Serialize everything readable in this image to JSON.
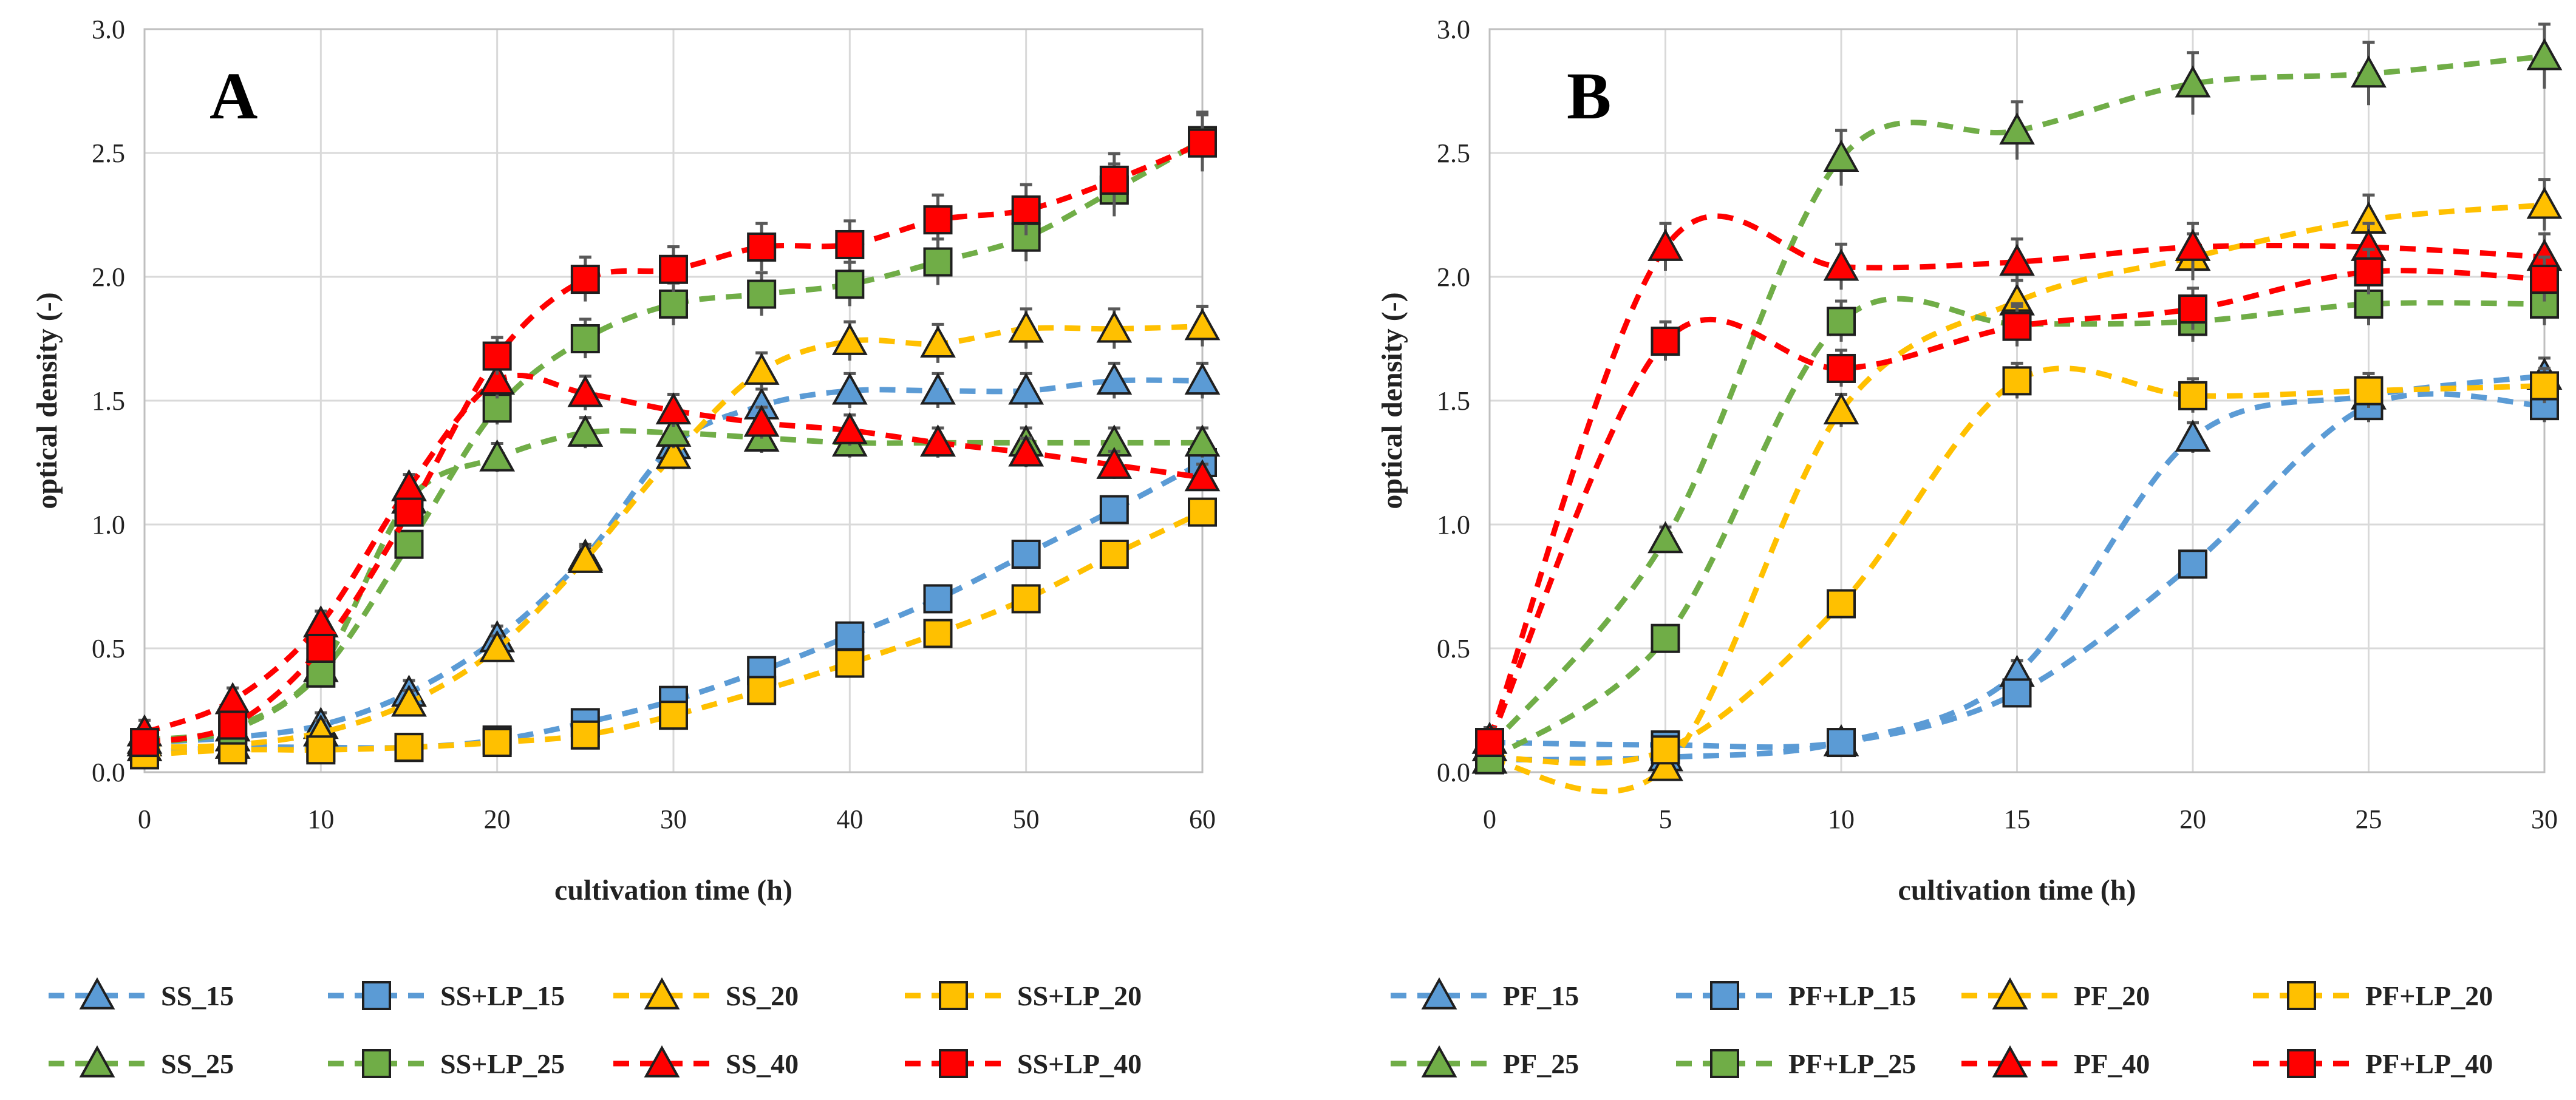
{
  "chart_data": [
    {
      "panel": "A",
      "type": "line",
      "xlabel": "cultivation time (h)",
      "ylabel": "optical density (-)",
      "xlim": [
        0,
        60
      ],
      "ylim": [
        0,
        3.0
      ],
      "xticks": [
        0,
        10,
        20,
        30,
        40,
        50,
        60
      ],
      "yticks": [
        "0.0",
        "0.5",
        "1.0",
        "1.5",
        "2.0",
        "2.5",
        "3.0"
      ],
      "grid": true,
      "legend_position": "bottom",
      "series": [
        {
          "name": "SS_15",
          "color": "#5b9bd5",
          "marker": "triangle",
          "x": [
            0,
            5,
            10,
            15,
            20,
            25,
            30,
            35,
            40,
            45,
            50,
            55,
            60
          ],
          "y": [
            0.12,
            0.14,
            0.19,
            0.32,
            0.54,
            0.87,
            1.32,
            1.48,
            1.54,
            1.54,
            1.54,
            1.58,
            1.58
          ]
        },
        {
          "name": "SS+LP_15",
          "color": "#5b9bd5",
          "marker": "square",
          "x": [
            0,
            5,
            10,
            15,
            20,
            25,
            30,
            35,
            40,
            45,
            50,
            55,
            60
          ],
          "y": [
            0.08,
            0.1,
            0.1,
            0.1,
            0.13,
            0.2,
            0.29,
            0.41,
            0.55,
            0.7,
            0.88,
            1.06,
            1.25
          ]
        },
        {
          "name": "SS_20",
          "color": "#ffc000",
          "marker": "triangle",
          "x": [
            0,
            5,
            10,
            15,
            20,
            25,
            30,
            35,
            40,
            45,
            50,
            55,
            60
          ],
          "y": [
            0.1,
            0.11,
            0.16,
            0.28,
            0.5,
            0.86,
            1.28,
            1.62,
            1.74,
            1.73,
            1.79,
            1.79,
            1.8
          ]
        },
        {
          "name": "SS+LP_20",
          "color": "#ffc000",
          "marker": "square",
          "x": [
            0,
            5,
            10,
            15,
            20,
            25,
            30,
            35,
            40,
            45,
            50,
            55,
            60
          ],
          "y": [
            0.07,
            0.09,
            0.09,
            0.1,
            0.12,
            0.15,
            0.23,
            0.33,
            0.44,
            0.56,
            0.7,
            0.88,
            1.05
          ]
        },
        {
          "name": "SS_25",
          "color": "#70ad47",
          "marker": "triangle",
          "x": [
            0,
            5,
            10,
            15,
            20,
            25,
            30,
            35,
            40,
            45,
            50,
            55,
            60
          ],
          "y": [
            0.13,
            0.18,
            0.42,
            1.1,
            1.27,
            1.37,
            1.37,
            1.35,
            1.33,
            1.33,
            1.33,
            1.33,
            1.33
          ]
        },
        {
          "name": "SS+LP_25",
          "color": "#70ad47",
          "marker": "square",
          "x": [
            0,
            5,
            10,
            15,
            20,
            25,
            30,
            35,
            40,
            45,
            50,
            55,
            60
          ],
          "y": [
            0.12,
            0.17,
            0.4,
            0.92,
            1.47,
            1.75,
            1.89,
            1.93,
            1.97,
            2.06,
            2.16,
            2.35,
            2.55
          ]
        },
        {
          "name": "SS_40",
          "color": "#ff0000",
          "marker": "triangle",
          "x": [
            0,
            5,
            10,
            15,
            20,
            25,
            30,
            35,
            40,
            45,
            50,
            55,
            60
          ],
          "y": [
            0.16,
            0.29,
            0.6,
            1.15,
            1.58,
            1.53,
            1.46,
            1.41,
            1.38,
            1.33,
            1.29,
            1.24,
            1.19
          ]
        },
        {
          "name": "SS+LP_40",
          "color": "#ff0000",
          "marker": "square",
          "x": [
            0,
            5,
            10,
            15,
            20,
            25,
            30,
            35,
            40,
            45,
            50,
            55,
            60
          ],
          "y": [
            0.12,
            0.19,
            0.5,
            1.05,
            1.68,
            1.99,
            2.03,
            2.12,
            2.13,
            2.23,
            2.27,
            2.39,
            2.54
          ]
        }
      ]
    },
    {
      "panel": "B",
      "type": "line",
      "xlabel": "cultivation time (h)",
      "ylabel": "optical density (-)",
      "xlim": [
        0,
        30
      ],
      "ylim": [
        0,
        3.0
      ],
      "xticks": [
        0,
        5,
        10,
        15,
        20,
        25,
        30
      ],
      "yticks": [
        "0.0",
        "0.5",
        "1.0",
        "1.5",
        "2.0",
        "2.5",
        "3.0"
      ],
      "grid": true,
      "legend_position": "bottom",
      "series": [
        {
          "name": "PF_15",
          "color": "#5b9bd5",
          "marker": "triangle",
          "x": [
            0,
            5,
            10,
            15,
            20,
            25,
            30
          ],
          "y": [
            0.05,
            0.06,
            0.12,
            0.4,
            1.35,
            1.52,
            1.6
          ]
        },
        {
          "name": "PF+LP_15",
          "color": "#5b9bd5",
          "marker": "square",
          "x": [
            0,
            5,
            10,
            15,
            20,
            25,
            30
          ],
          "y": [
            0.12,
            0.11,
            0.12,
            0.32,
            0.84,
            1.48,
            1.48
          ]
        },
        {
          "name": "PF_20",
          "color": "#ffc000",
          "marker": "triangle",
          "x": [
            0,
            5,
            10,
            15,
            20,
            25,
            30
          ],
          "y": [
            0.05,
            0.02,
            1.46,
            1.9,
            2.08,
            2.23,
            2.29
          ]
        },
        {
          "name": "PF+LP_20",
          "color": "#ffc000",
          "marker": "square",
          "x": [
            0,
            5,
            10,
            15,
            20,
            25,
            30
          ],
          "y": [
            0.06,
            0.09,
            0.68,
            1.58,
            1.52,
            1.54,
            1.56
          ]
        },
        {
          "name": "PF_25",
          "color": "#70ad47",
          "marker": "triangle",
          "x": [
            0,
            5,
            10,
            15,
            20,
            25,
            30
          ],
          "y": [
            0.1,
            0.94,
            2.48,
            2.59,
            2.78,
            2.82,
            2.89
          ]
        },
        {
          "name": "PF+LP_25",
          "color": "#70ad47",
          "marker": "square",
          "x": [
            0,
            5,
            10,
            15,
            20,
            25,
            30
          ],
          "y": [
            0.05,
            0.54,
            1.82,
            1.81,
            1.82,
            1.89,
            1.89
          ]
        },
        {
          "name": "PF_40",
          "color": "#ff0000",
          "marker": "triangle",
          "x": [
            0,
            5,
            10,
            15,
            20,
            25,
            30
          ],
          "y": [
            0.13,
            2.12,
            2.04,
            2.06,
            2.12,
            2.12,
            2.08
          ]
        },
        {
          "name": "PF+LP_40",
          "color": "#ff0000",
          "marker": "square",
          "x": [
            0,
            5,
            10,
            15,
            20,
            25,
            30
          ],
          "y": [
            0.12,
            1.74,
            1.63,
            1.8,
            1.87,
            2.02,
            1.99
          ]
        }
      ]
    }
  ]
}
